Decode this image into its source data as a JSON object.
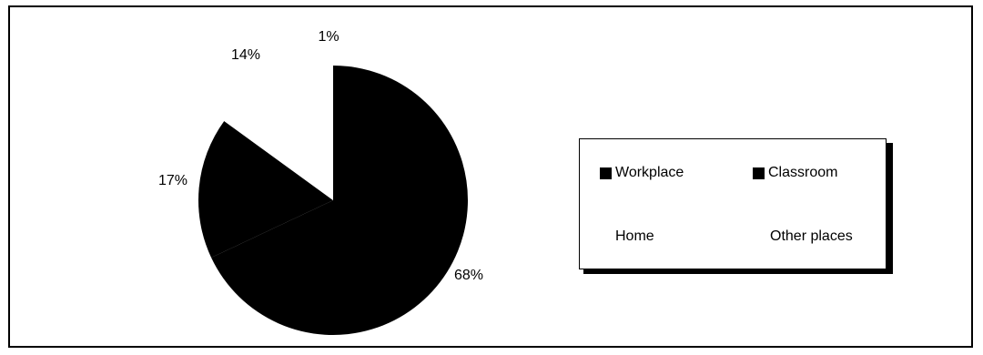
{
  "chart_data": {
    "type": "pie",
    "categories": [
      "Workplace",
      "Classroom",
      "Home",
      "Other places"
    ],
    "values": [
      68,
      17,
      14,
      1
    ],
    "labels": [
      "68%",
      "17%",
      "14%",
      "1%"
    ],
    "legend": [
      "Workplace",
      "Classroom",
      "Home",
      "Other places"
    ],
    "legend_placement": "right",
    "colors": [
      "#000000",
      "#000000",
      "#ffffff",
      "#ffffff"
    ]
  }
}
